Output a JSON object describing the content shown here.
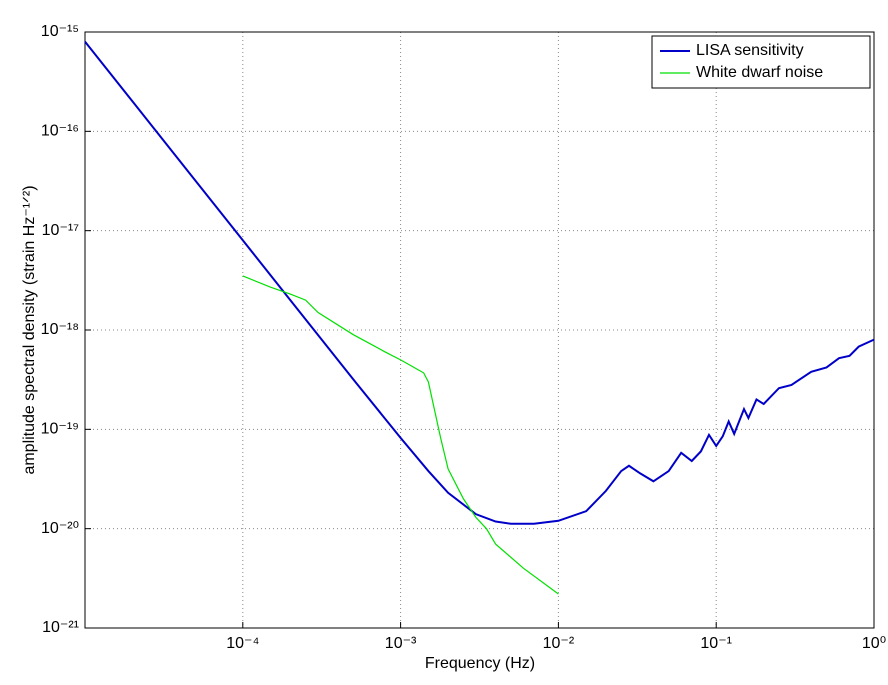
{
  "chart_data": {
    "type": "line",
    "xlabel": "Frequency (Hz)",
    "ylabel": "amplitude spectral density (strain Hz⁻¹ᐟ²)",
    "xscale": "log",
    "yscale": "log",
    "xlim": [
      1e-05,
      1
    ],
    "ylim": [
      1e-21,
      1e-15
    ],
    "xticks": [
      {
        "value": 0.0001,
        "label": "10⁻⁴"
      },
      {
        "value": 0.001,
        "label": "10⁻³"
      },
      {
        "value": 0.01,
        "label": "10⁻²"
      },
      {
        "value": 0.1,
        "label": "10⁻¹"
      },
      {
        "value": 1,
        "label": "10⁰"
      }
    ],
    "yticks": [
      {
        "value": 1e-21,
        "label": "10⁻²¹"
      },
      {
        "value": 1e-20,
        "label": "10⁻²⁰"
      },
      {
        "value": 1e-19,
        "label": "10⁻¹⁹"
      },
      {
        "value": 1e-18,
        "label": "10⁻¹⁸"
      },
      {
        "value": 1e-17,
        "label": "10⁻¹⁷"
      },
      {
        "value": 1e-16,
        "label": "10⁻¹⁶"
      },
      {
        "value": 1e-15,
        "label": "10⁻¹⁵"
      }
    ],
    "grid": true,
    "legend": "upper right",
    "series": [
      {
        "name": "LISA sensitivity",
        "color": "#0000c8",
        "x": [
          1e-05,
          2e-05,
          5e-05,
          0.0001,
          0.0002,
          0.0005,
          0.001,
          0.0015,
          0.002,
          0.003,
          0.004,
          0.005,
          0.007,
          0.01,
          0.015,
          0.02,
          0.025,
          0.028,
          0.033,
          0.04,
          0.05,
          0.06,
          0.07,
          0.08,
          0.09,
          0.1,
          0.11,
          0.12,
          0.13,
          0.15,
          0.16,
          0.18,
          0.2,
          0.25,
          0.3,
          0.4,
          0.5,
          0.6,
          0.7,
          0.8,
          1
        ],
        "values": [
          8e-16,
          2e-16,
          3.2e-17,
          8e-18,
          2e-18,
          3.2e-19,
          8.2e-20,
          3.8e-20,
          2.3e-20,
          1.4e-20,
          1.18e-20,
          1.12e-20,
          1.12e-20,
          1.2e-20,
          1.5e-20,
          2.4e-20,
          3.8e-20,
          4.3e-20,
          3.6e-20,
          3e-20,
          3.8e-20,
          5.8e-20,
          4.8e-20,
          6e-20,
          8.8e-20,
          6.8e-20,
          8.5e-20,
          1.2e-19,
          9e-20,
          1.6e-19,
          1.3e-19,
          2e-19,
          1.8e-19,
          2.6e-19,
          2.8e-19,
          3.8e-19,
          4.2e-19,
          5.2e-19,
          5.5e-19,
          6.8e-19,
          8e-19
        ]
      },
      {
        "name": "White dwarf noise",
        "color": "#00e000",
        "x": [
          0.0001,
          0.00015,
          0.0002,
          0.00025,
          0.0003,
          0.0005,
          0.0008,
          0.001,
          0.0014,
          0.0015,
          0.0018,
          0.002,
          0.0025,
          0.003,
          0.0035,
          0.004,
          0.006,
          0.01
        ],
        "values": [
          3.5e-18,
          2.7e-18,
          2.3e-18,
          2e-18,
          1.5e-18,
          9e-19,
          6e-19,
          5e-19,
          3.7e-19,
          3e-19,
          8e-20,
          4e-20,
          2e-20,
          1.3e-20,
          1e-20,
          7e-21,
          4e-21,
          2.2e-21
        ]
      }
    ]
  }
}
